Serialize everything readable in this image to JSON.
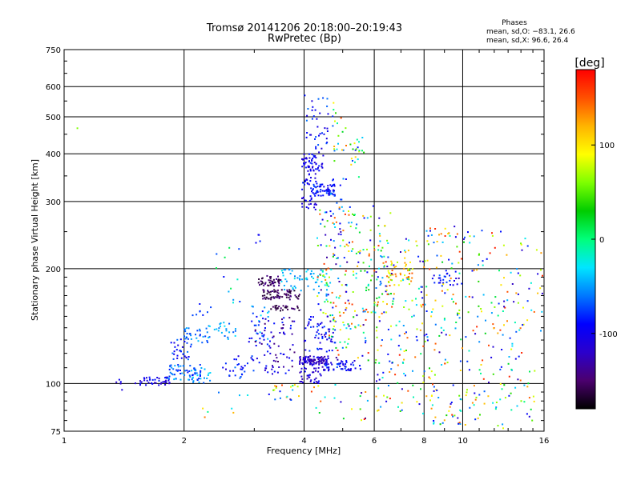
{
  "chart_data": {
    "type": "scatter",
    "title": "Tromsø 20141206 20:18:00–20:19:43",
    "subtitle": "RwPretec (Bp)",
    "xlabel": "Frequency [MHz]",
    "ylabel": "Stationary phase Virtual Height [km]",
    "x_scale": "log",
    "y_scale": "log",
    "xlim": [
      1,
      16
    ],
    "ylim": [
      75,
      750
    ],
    "x_ticks": [
      "1",
      "2",
      "4",
      "6",
      "8",
      "10",
      "16"
    ],
    "y_ticks": [
      "75",
      "100",
      "200",
      "300",
      "400",
      "500",
      "600",
      "750"
    ],
    "grid": true,
    "phase_stats": {
      "heading": "Phases",
      "line_o": "mean, sd,O: −83.1, 26.6",
      "line_x": "mean, sd,X:  96.6, 26.4"
    },
    "colorbar": {
      "label": "[deg]",
      "range": [
        -180,
        180
      ],
      "tick_labels": [
        "100",
        "0",
        "-100"
      ],
      "tick_values": [
        100,
        0,
        -100
      ],
      "colors": [
        "#000000",
        "#4b006e",
        "#2b00cc",
        "#0000ff",
        "#0078ff",
        "#00e6ff",
        "#00ff7a",
        "#00cc00",
        "#7dff00",
        "#ffff00",
        "#ffb400",
        "#ff5000",
        "#ff0000"
      ]
    },
    "clusters": [
      {
        "f0": 1.08,
        "f1": 1.08,
        "h0": 465,
        "h1": 470,
        "n": 1,
        "pmin": 60,
        "pmax": 60
      },
      {
        "f0": 1.35,
        "f1": 1.4,
        "h0": 96,
        "h1": 104,
        "n": 5,
        "pmin": -120,
        "pmax": -95
      },
      {
        "f0": 1.5,
        "f1": 1.85,
        "h0": 99,
        "h1": 104,
        "n": 40,
        "pmin": -130,
        "pmax": -80
      },
      {
        "f0": 1.8,
        "f1": 2.2,
        "h0": 102,
        "h1": 112,
        "n": 60,
        "pmin": -90,
        "pmax": -40
      },
      {
        "f0": 1.85,
        "f1": 2.1,
        "h0": 115,
        "h1": 132,
        "n": 30,
        "pmin": -110,
        "pmax": -60
      },
      {
        "f0": 2.0,
        "f1": 2.3,
        "h0": 128,
        "h1": 140,
        "n": 30,
        "pmin": -80,
        "pmax": -40
      },
      {
        "f0": 2.05,
        "f1": 2.35,
        "h0": 100,
        "h1": 110,
        "n": 20,
        "pmin": -70,
        "pmax": -30
      },
      {
        "f0": 2.3,
        "f1": 2.7,
        "h0": 130,
        "h1": 145,
        "n": 25,
        "pmin": -70,
        "pmax": -30
      },
      {
        "f0": 2.1,
        "f1": 2.4,
        "h0": 150,
        "h1": 165,
        "n": 8,
        "pmin": -90,
        "pmax": -70
      },
      {
        "f0": 2.5,
        "f1": 3.0,
        "h0": 103,
        "h1": 118,
        "n": 30,
        "pmin": -120,
        "pmax": -60
      },
      {
        "f0": 2.4,
        "f1": 2.8,
        "h0": 160,
        "h1": 230,
        "n": 12,
        "pmin": -90,
        "pmax": 20
      },
      {
        "f0": 2.2,
        "f1": 2.9,
        "h0": 80,
        "h1": 95,
        "n": 8,
        "pmin": -100,
        "pmax": 170
      },
      {
        "f0": 2.9,
        "f1": 3.3,
        "h0": 125,
        "h1": 160,
        "n": 25,
        "pmin": -100,
        "pmax": -30
      },
      {
        "f0": 3.0,
        "f1": 3.3,
        "h0": 230,
        "h1": 250,
        "n": 4,
        "pmin": -100,
        "pmax": -80
      },
      {
        "f0": 3.05,
        "f1": 3.5,
        "h0": 180,
        "h1": 192,
        "n": 45,
        "pmin": -170,
        "pmax": -140
      },
      {
        "f0": 3.15,
        "f1": 3.9,
        "h0": 166,
        "h1": 176,
        "n": 70,
        "pmin": -170,
        "pmax": -140
      },
      {
        "f0": 3.3,
        "f1": 3.9,
        "h0": 155,
        "h1": 160,
        "n": 25,
        "pmin": -170,
        "pmax": -140
      },
      {
        "f0": 3.0,
        "f1": 3.8,
        "h0": 105,
        "h1": 150,
        "n": 80,
        "pmin": -150,
        "pmax": -80
      },
      {
        "f0": 3.5,
        "f1": 4.0,
        "h0": 175,
        "h1": 200,
        "n": 25,
        "pmin": -60,
        "pmax": -20
      },
      {
        "f0": 3.2,
        "f1": 3.9,
        "h0": 90,
        "h1": 100,
        "n": 20,
        "pmin": -150,
        "pmax": 170
      },
      {
        "f0": 3.9,
        "f1": 4.6,
        "h0": 112,
        "h1": 118,
        "n": 90,
        "pmin": -140,
        "pmax": -100
      },
      {
        "f0": 3.9,
        "f1": 4.5,
        "h0": 100,
        "h1": 112,
        "n": 40,
        "pmin": -130,
        "pmax": -90
      },
      {
        "f0": 4.5,
        "f1": 5.6,
        "h0": 108,
        "h1": 115,
        "n": 50,
        "pmin": -120,
        "pmax": -70
      },
      {
        "f0": 3.95,
        "f1": 4.3,
        "h0": 285,
        "h1": 400,
        "n": 70,
        "pmin": -120,
        "pmax": -80
      },
      {
        "f0": 4.2,
        "f1": 4.8,
        "h0": 310,
        "h1": 335,
        "n": 60,
        "pmin": -110,
        "pmax": -70
      },
      {
        "f0": 4.0,
        "f1": 4.5,
        "h0": 360,
        "h1": 420,
        "n": 30,
        "pmin": -120,
        "pmax": -80
      },
      {
        "f0": 4.0,
        "f1": 4.6,
        "h0": 420,
        "h1": 570,
        "n": 35,
        "pmin": -120,
        "pmax": -60
      },
      {
        "f0": 4.7,
        "f1": 5.2,
        "h0": 380,
        "h1": 560,
        "n": 20,
        "pmin": -100,
        "pmax": 150
      },
      {
        "f0": 5.2,
        "f1": 5.7,
        "h0": 340,
        "h1": 450,
        "n": 20,
        "pmin": -110,
        "pmax": 120
      },
      {
        "f0": 4.6,
        "f1": 5.1,
        "h0": 280,
        "h1": 350,
        "n": 15,
        "pmin": -110,
        "pmax": -40
      },
      {
        "f0": 3.9,
        "f1": 4.7,
        "h0": 175,
        "h1": 200,
        "n": 30,
        "pmin": -60,
        "pmax": -20
      },
      {
        "f0": 4.0,
        "f1": 4.8,
        "h0": 120,
        "h1": 150,
        "n": 55,
        "pmin": -130,
        "pmax": -70
      },
      {
        "f0": 4.3,
        "f1": 5.3,
        "h0": 150,
        "h1": 290,
        "n": 110,
        "pmin": -140,
        "pmax": 170
      },
      {
        "f0": 4.6,
        "f1": 5.8,
        "h0": 115,
        "h1": 160,
        "n": 60,
        "pmin": -140,
        "pmax": 170
      },
      {
        "f0": 5.3,
        "f1": 5.9,
        "h0": 170,
        "h1": 280,
        "n": 30,
        "pmin": -110,
        "pmax": 130
      },
      {
        "f0": 4.1,
        "f1": 5.9,
        "h0": 80,
        "h1": 100,
        "n": 20,
        "pmin": -150,
        "pmax": 170
      },
      {
        "f0": 5.8,
        "f1": 6.6,
        "h0": 150,
        "h1": 300,
        "n": 40,
        "pmin": -120,
        "pmax": 150
      },
      {
        "f0": 6.5,
        "f1": 7.5,
        "h0": 180,
        "h1": 210,
        "n": 40,
        "pmin": 60,
        "pmax": 150
      },
      {
        "f0": 6.0,
        "f1": 8.0,
        "h0": 115,
        "h1": 240,
        "n": 110,
        "pmin": -130,
        "pmax": 170
      },
      {
        "f0": 6.0,
        "f1": 8.0,
        "h0": 82,
        "h1": 115,
        "n": 45,
        "pmin": -120,
        "pmax": 170
      },
      {
        "f0": 8.4,
        "f1": 9.7,
        "h0": 180,
        "h1": 200,
        "n": 25,
        "pmin": -110,
        "pmax": -70
      },
      {
        "f0": 8.0,
        "f1": 10.0,
        "h0": 110,
        "h1": 260,
        "n": 90,
        "pmin": -130,
        "pmax": 170
      },
      {
        "f0": 8.0,
        "f1": 10.0,
        "h0": 78,
        "h1": 110,
        "n": 45,
        "pmin": -120,
        "pmax": 170
      },
      {
        "f0": 10.0,
        "f1": 13.0,
        "h0": 100,
        "h1": 260,
        "n": 80,
        "pmin": -130,
        "pmax": 170
      },
      {
        "f0": 10.0,
        "f1": 13.0,
        "h0": 76,
        "h1": 100,
        "n": 30,
        "pmin": -120,
        "pmax": 170
      },
      {
        "f0": 13.0,
        "f1": 15.9,
        "h0": 80,
        "h1": 270,
        "n": 70,
        "pmin": -130,
        "pmax": 170
      }
    ]
  }
}
